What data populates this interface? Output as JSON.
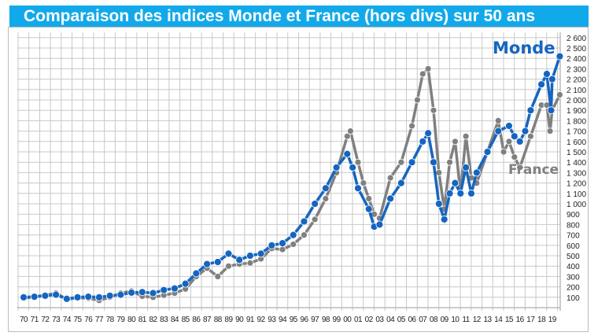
{
  "chart_data": {
    "type": "line",
    "title": "Comparaison des indices Monde et France (hors divs) sur 50 ans",
    "ylim": [
      0,
      2600
    ],
    "yticks": [
      100,
      200,
      300,
      400,
      500,
      600,
      700,
      800,
      900,
      "1 000",
      "1 100",
      "1 200",
      "1 300",
      "1 400",
      "1 500",
      "1 600",
      "1 700",
      "1 800",
      "1 900",
      "2 000",
      "2 100",
      "2 200",
      "2 300",
      "2 400",
      "2 500",
      "2 600"
    ],
    "xticks": [
      "70",
      "71",
      "72",
      "73",
      "74",
      "75",
      "76",
      "77",
      "78",
      "79",
      "80",
      "81",
      "82",
      "83",
      "84",
      "85",
      "86",
      "87",
      "88",
      "89",
      "90",
      "91",
      "92",
      "93",
      "94",
      "95",
      "96",
      "97",
      "98",
      "99",
      "00",
      "01",
      "02",
      "03",
      "04",
      "05",
      "06",
      "07",
      "08",
      "09",
      "10",
      "11",
      "12",
      "13",
      "14",
      "15",
      "16",
      "17",
      "18",
      "19"
    ],
    "grid": true,
    "series": [
      {
        "name": "France",
        "color": "#808080",
        "x": [
          1970,
          1972,
          1973,
          1974,
          1975,
          1976,
          1977,
          1978,
          1979,
          1980,
          1981,
          1982,
          1983,
          1984,
          1985,
          1986,
          1987,
          1988,
          1989,
          1990,
          1991,
          1992,
          1993,
          1994,
          1995,
          1996,
          1997,
          1998,
          1999,
          2000,
          2000.3,
          2001,
          2001.5,
          2002,
          2002.5,
          2003,
          2004,
          2005,
          2006,
          2006.5,
          2007,
          2007.5,
          2008,
          2008.5,
          2009,
          2009.5,
          2010,
          2010.5,
          2011,
          2011.5,
          2012,
          2013,
          2014,
          2014.5,
          2015,
          2015.5,
          2016,
          2017,
          2018,
          2018.5,
          2018.8,
          2019,
          2019.7
        ],
        "y": [
          90,
          120,
          140,
          80,
          95,
          90,
          70,
          100,
          140,
          160,
          110,
          100,
          120,
          140,
          180,
          300,
          380,
          300,
          400,
          420,
          430,
          470,
          570,
          560,
          610,
          700,
          850,
          1050,
          1300,
          1650,
          1700,
          1400,
          1200,
          1050,
          900,
          860,
          1250,
          1400,
          1750,
          2000,
          2250,
          2300,
          1900,
          1300,
          950,
          1400,
          1600,
          1100,
          1650,
          1250,
          1200,
          1500,
          1800,
          1500,
          1600,
          1450,
          1350,
          1650,
          1950,
          1950,
          1700,
          1900,
          2050
        ]
      },
      {
        "name": "Monde",
        "color": "#1565c0",
        "x": [
          1970,
          1971,
          1972,
          1973,
          1974,
          1975,
          1976,
          1977,
          1978,
          1979,
          1980,
          1981,
          1982,
          1983,
          1984,
          1985,
          1986,
          1987,
          1988,
          1989,
          1990,
          1991,
          1992,
          1993,
          1994,
          1995,
          1996,
          1997,
          1998,
          1999,
          2000,
          2000.5,
          2001,
          2002,
          2002.5,
          2003,
          2004,
          2005,
          2006,
          2007,
          2007.5,
          2008,
          2008.5,
          2009,
          2009.5,
          2010,
          2010.5,
          2011,
          2011.5,
          2012,
          2013,
          2014,
          2015,
          2015.5,
          2016,
          2016.5,
          2017,
          2018,
          2018.5,
          2018.9,
          2019,
          2019.7
        ],
        "y": [
          100,
          105,
          115,
          125,
          85,
          100,
          105,
          100,
          115,
          125,
          145,
          150,
          140,
          170,
          185,
          230,
          330,
          420,
          440,
          520,
          460,
          500,
          520,
          600,
          620,
          700,
          830,
          1000,
          1150,
          1350,
          1480,
          1350,
          1150,
          950,
          780,
          800,
          1050,
          1200,
          1400,
          1600,
          1680,
          1400,
          1000,
          850,
          1100,
          1200,
          1100,
          1350,
          1100,
          1300,
          1500,
          1700,
          1750,
          1650,
          1600,
          1700,
          1900,
          2150,
          2250,
          1900,
          2200,
          2420
        ]
      }
    ]
  }
}
